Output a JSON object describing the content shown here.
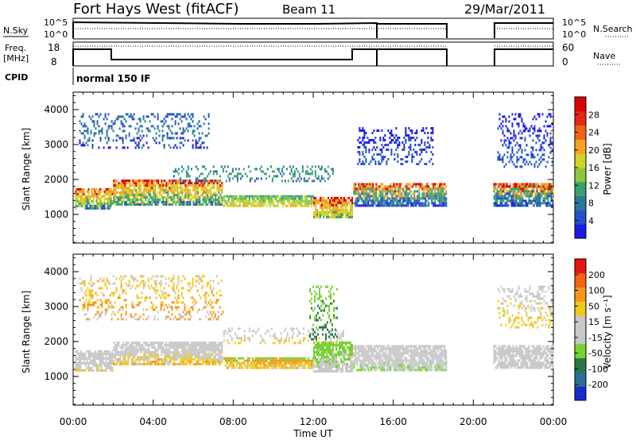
{
  "header": {
    "station": "Fort Hays West (fitACF)",
    "beam": "Beam 11",
    "date": "29/Mar/2011"
  },
  "status_panel": {
    "nsky_label": "N.Sky",
    "nsky_ticks": [
      "10^5",
      "10^0"
    ],
    "nsearch_label": "N.Search",
    "nsearch_ticks": [
      "10^5",
      "10^0"
    ],
    "freq_label": "Freq.",
    "freq_unit": "[MHz]",
    "freq_ticks": [
      "18",
      "8"
    ],
    "nave_label": "Nave",
    "nave_ticks": [
      "60",
      "0"
    ],
    "cpid_label": "CPID",
    "cpid_value": "normal 150 IF"
  },
  "x_axis": {
    "label": "Time UT",
    "ticks": [
      "00:00",
      "04:00",
      "08:00",
      "12:00",
      "16:00",
      "20:00",
      "00:00"
    ]
  },
  "chart_data": [
    {
      "type": "heatmap",
      "name": "power-panel",
      "xlabel": "Time UT",
      "ylabel": "Slant Range [km]",
      "x_unit": "hours UT",
      "xlim": [
        0,
        24
      ],
      "ylim": [
        180,
        4500
      ],
      "y_ticks": [
        "1000",
        "2000",
        "3000",
        "4000"
      ],
      "colorbar": {
        "label": "Power [dB]",
        "ticks": [
          "4",
          "8",
          "12",
          "16",
          "20",
          "24",
          "28"
        ],
        "colors": [
          "#1a1ae6",
          "#2450c8",
          "#2a7898",
          "#3aa070",
          "#8cc83c",
          "#d2d228",
          "#f5a01e",
          "#f06414",
          "#e62814",
          "#dc0000"
        ],
        "range": [
          0,
          32
        ]
      },
      "data_gaps_hours": [
        [
          18.7,
          21.0
        ]
      ],
      "echo_bands": [
        {
          "start": 0.1,
          "end": 2.0,
          "range_low": 1150,
          "range_high": 1750,
          "color_mix": [
            "#dc0000",
            "#f5a01e",
            "#d2d228",
            "#3aa070",
            "#2450c8"
          ]
        },
        {
          "start": 2.0,
          "end": 7.5,
          "range_low": 1280,
          "range_high": 2000,
          "color_mix": [
            "#dc0000",
            "#f5a01e",
            "#d2d228",
            "#3aa070",
            "#2450c8"
          ]
        },
        {
          "start": 7.5,
          "end": 12.0,
          "range_low": 1180,
          "range_high": 1550,
          "color_mix": [
            "#3aa070",
            "#8cc83c",
            "#d2d228",
            "#f5a01e"
          ]
        },
        {
          "start": 12.0,
          "end": 14.0,
          "range_low": 900,
          "range_high": 1500,
          "color_mix": [
            "#dc0000",
            "#f5a01e",
            "#d2d228",
            "#3aa070"
          ]
        },
        {
          "start": 14.0,
          "end": 18.7,
          "range_low": 1200,
          "range_high": 1900,
          "color_mix": [
            "#dc0000",
            "#f5a01e",
            "#3aa070",
            "#2450c8",
            "#1a1ae6"
          ]
        },
        {
          "start": 21.0,
          "end": 24.0,
          "range_low": 1200,
          "range_high": 1900,
          "color_mix": [
            "#dc0000",
            "#f5a01e",
            "#3aa070",
            "#2450c8",
            "#1a1ae6"
          ]
        },
        {
          "start": 0.3,
          "end": 6.8,
          "range_low": 2900,
          "range_high": 3900,
          "color_mix": [
            "#2450c8",
            "#2a7898",
            "#1a1ae6"
          ]
        },
        {
          "start": 5.0,
          "end": 13.0,
          "range_low": 1900,
          "range_high": 2400,
          "color_mix": [
            "#2a7898",
            "#3aa070",
            "#2450c8"
          ]
        },
        {
          "start": 21.2,
          "end": 24.0,
          "range_low": 2300,
          "range_high": 3900,
          "color_mix": [
            "#1a1ae6",
            "#2450c8"
          ]
        },
        {
          "start": 14.2,
          "end": 18.0,
          "range_low": 2400,
          "range_high": 3500,
          "color_mix": [
            "#1a1ae6",
            "#2450c8"
          ]
        }
      ]
    },
    {
      "type": "heatmap",
      "name": "velocity-panel",
      "xlabel": "Time UT",
      "ylabel": "Slant Range [km]",
      "x_unit": "hours UT",
      "xlim": [
        0,
        24
      ],
      "ylim": [
        180,
        4500
      ],
      "y_ticks": [
        "1000",
        "2000",
        "3000",
        "4000"
      ],
      "colorbar": {
        "label": "Velocity [m s⁻¹]",
        "ticks": [
          "200",
          "100",
          "50",
          "15",
          "-15",
          "-50",
          "-100",
          "-200"
        ],
        "colors": [
          "#1a2ad2",
          "#2a6e96",
          "#287846",
          "#78d232",
          "#c8c8c8",
          "#c8c8c8",
          "#f0c81e",
          "#f59614",
          "#f06414",
          "#e61414"
        ]
      },
      "data_gaps_hours": [
        [
          18.7,
          21.0
        ]
      ],
      "echo_bands": [
        {
          "start": 0.1,
          "end": 2.0,
          "range_low": 1150,
          "range_high": 1750,
          "color_mix": [
            "#c8c8c8",
            "#c8c8c8",
            "#c8c8c8",
            "#f0c81e"
          ]
        },
        {
          "start": 2.0,
          "end": 7.5,
          "range_low": 1300,
          "range_high": 2000,
          "color_mix": [
            "#c8c8c8",
            "#c8c8c8",
            "#c8c8c8",
            "#f0c81e",
            "#f59614"
          ]
        },
        {
          "start": 7.5,
          "end": 12.0,
          "range_low": 1180,
          "range_high": 1550,
          "color_mix": [
            "#78d232",
            "#f59614",
            "#f0c81e",
            "#c8c8c8"
          ]
        },
        {
          "start": 12.0,
          "end": 14.0,
          "range_low": 1100,
          "range_high": 2000,
          "color_mix": [
            "#78d232",
            "#c8c8c8"
          ]
        },
        {
          "start": 14.0,
          "end": 18.7,
          "range_low": 1150,
          "range_high": 1900,
          "color_mix": [
            "#c8c8c8",
            "#c8c8c8",
            "#c8c8c8",
            "#78d232"
          ]
        },
        {
          "start": 21.0,
          "end": 24.0,
          "range_low": 1200,
          "range_high": 1900,
          "color_mix": [
            "#c8c8c8",
            "#c8c8c8",
            "#c8c8c8"
          ]
        },
        {
          "start": 0.3,
          "end": 7.5,
          "range_low": 2600,
          "range_high": 3900,
          "color_mix": [
            "#c8c8c8",
            "#f0c81e",
            "#f59614",
            "#c8c8c8"
          ]
        },
        {
          "start": 7.5,
          "end": 13.5,
          "range_low": 1900,
          "range_high": 2400,
          "color_mix": [
            "#c8c8c8",
            "#c8c8c8",
            "#f0c81e"
          ]
        },
        {
          "start": 11.8,
          "end": 13.2,
          "range_low": 2000,
          "range_high": 3600,
          "color_mix": [
            "#78d232",
            "#287846"
          ]
        },
        {
          "start": 21.2,
          "end": 24.0,
          "range_low": 2400,
          "range_high": 3600,
          "color_mix": [
            "#c8c8c8",
            "#f0c81e"
          ]
        }
      ]
    }
  ]
}
